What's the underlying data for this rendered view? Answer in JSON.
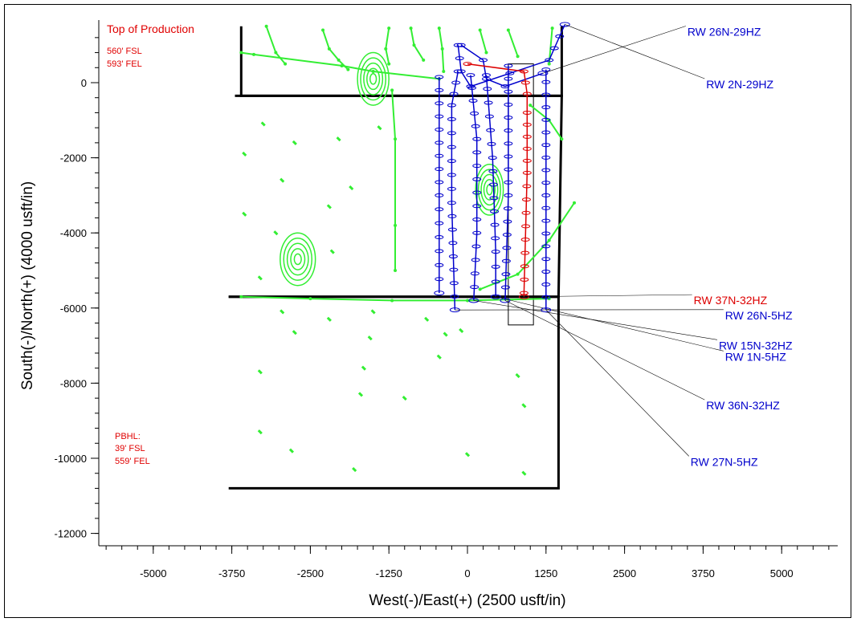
{
  "colors": {
    "frame": "#000000",
    "offset_wells": "#33ee33",
    "nearby_wells": "#0000cc",
    "subject_well": "#dd0000",
    "annotation": "#dd0000"
  },
  "chart_data": {
    "type": "scatter",
    "xlabel": "West(-)/East(+) (2500 usft/in)",
    "ylabel": "South(-)/North(+) (4000 usft/in)",
    "xlim": [
      -7800,
      7000
    ],
    "ylim": [
      -12000,
      1500
    ],
    "x_ticks": [
      "-5000",
      "-3750",
      "-2500",
      "-1250",
      "0",
      "1250",
      "2500",
      "3750",
      "5000"
    ],
    "y_ticks": [
      "0",
      "-2000",
      "-4000",
      "-6000",
      "-8000",
      "-10000",
      "-12000"
    ],
    "grid": false,
    "lease_outline": [
      {
        "name": "north-tract",
        "points": [
          [
            -3600,
            1500
          ],
          [
            -3600,
            -350
          ],
          [
            1500,
            -350
          ],
          [
            1500,
            1500
          ]
        ]
      },
      {
        "name": "middle-tract",
        "points": [
          [
            -3700,
            -350
          ],
          [
            1500,
            -350
          ],
          [
            1450,
            -5700
          ],
          [
            -3800,
            -5700
          ]
        ]
      },
      {
        "name": "south-tract",
        "points": [
          [
            -3800,
            -5700
          ],
          [
            1450,
            -5700
          ],
          [
            1450,
            -10800
          ],
          [
            -3800,
            -10800
          ]
        ]
      }
    ],
    "hardline_box": {
      "x": [
        650,
        1050
      ],
      "y": [
        500,
        -6450
      ]
    },
    "annotations": {
      "top_of_production": {
        "title": "Top of Production",
        "line1": "560' FSL",
        "line2": "593' FEL",
        "x": -5700,
        "y": 1050
      },
      "pbhl": {
        "title": "PBHL:",
        "line1": "39' FSL",
        "line2": "559' FEL",
        "x": -5700,
        "y": -9200
      }
    },
    "series": [
      {
        "name": "RW 26N-29HZ",
        "color": "#0000cc",
        "points": [
          [
            -100,
            1000
          ],
          [
            250,
            600
          ],
          [
            300,
            100
          ],
          [
            600,
            -100
          ],
          [
            1200,
            250
          ]
        ],
        "label_pos": [
          3500,
          1250
        ]
      },
      {
        "name": "RW 2N-29HZ",
        "color": "#0000cc",
        "points": [
          [
            -150,
            1000
          ],
          [
            -100,
            300
          ],
          [
            50,
            -100
          ],
          [
            1300,
            600
          ],
          [
            1550,
            1550
          ]
        ],
        "label_pos": [
          3800,
          -150
        ]
      },
      {
        "name": "RW 37N-32HZ",
        "color": "#dd0000",
        "points": [
          [
            0,
            500
          ],
          [
            900,
            300
          ],
          [
            950,
            -300
          ],
          [
            950,
            -800
          ],
          [
            950,
            -2400
          ],
          [
            900,
            -5600
          ],
          [
            900,
            -5700
          ]
        ],
        "label_pos": [
          3600,
          -5900
        ]
      },
      {
        "name": "RW 26N-5HZ",
        "color": "#0000cc",
        "points": [
          [
            -150,
            300
          ],
          [
            -250,
            -600
          ],
          [
            -250,
            -3200
          ],
          [
            -200,
            -6050
          ]
        ],
        "label_pos": [
          4100,
          -6300
        ]
      },
      {
        "name": "RW 15N-32HZ",
        "color": "#0000cc",
        "points": [
          [
            50,
            200
          ],
          [
            150,
            -1500
          ],
          [
            150,
            -4000
          ],
          [
            100,
            -5800
          ]
        ],
        "label_pos": [
          4000,
          -7100
        ]
      },
      {
        "name": "RW 1N-5HZ",
        "color": "#0000cc",
        "points": [
          [
            300,
            200
          ],
          [
            400,
            -2000
          ],
          [
            450,
            -4500
          ],
          [
            450,
            -5700
          ]
        ],
        "label_pos": [
          4100,
          -7400
        ]
      },
      {
        "name": "RW 36N-32HZ",
        "color": "#0000cc",
        "points": [
          [
            650,
            450
          ],
          [
            650,
            -3000
          ],
          [
            600,
            -5800
          ]
        ],
        "label_pos": [
          3800,
          -8700
        ]
      },
      {
        "name": "RW 27N-5HZ",
        "color": "#0000cc",
        "points": [
          [
            1250,
            350
          ],
          [
            1250,
            -3000
          ],
          [
            1250,
            -6050
          ]
        ],
        "label_pos": [
          3550,
          -10200
        ]
      },
      {
        "name": "",
        "color": "#0000cc",
        "points": [
          [
            -450,
            150
          ],
          [
            -450,
            -3000
          ],
          [
            -450,
            -5600
          ]
        ]
      }
    ],
    "offset_wells": [
      {
        "points": [
          [
            -3600,
            800
          ],
          [
            -3400,
            750
          ],
          [
            -2000,
            450
          ],
          [
            -1500,
            300
          ],
          [
            -450,
            100
          ]
        ]
      },
      {
        "points": [
          [
            -2300,
            1400
          ],
          [
            -2200,
            900
          ],
          [
            -2050,
            600
          ],
          [
            -1900,
            350
          ]
        ]
      },
      {
        "points": [
          [
            -1250,
            1450
          ],
          [
            -1300,
            900
          ],
          [
            -1250,
            500
          ]
        ]
      },
      {
        "points": [
          [
            -900,
            1450
          ],
          [
            -850,
            1000
          ],
          [
            -700,
            600
          ]
        ]
      },
      {
        "points": [
          [
            -450,
            1450
          ],
          [
            -400,
            900
          ],
          [
            -380,
            300
          ]
        ]
      },
      {
        "points": [
          [
            -3200,
            1500
          ],
          [
            -3050,
            800
          ],
          [
            -2900,
            500
          ]
        ]
      },
      {
        "points": [
          [
            -1200,
            -200
          ],
          [
            -1150,
            -1500
          ],
          [
            -1150,
            -3800
          ],
          [
            -1150,
            -5000
          ]
        ]
      },
      {
        "points": [
          [
            -3600,
            -5700
          ],
          [
            -2500,
            -5750
          ],
          [
            -1200,
            -5800
          ],
          [
            0,
            -5800
          ],
          [
            1300,
            -5750
          ]
        ]
      },
      {
        "points": [
          [
            1000,
            -600
          ],
          [
            1300,
            -1000
          ],
          [
            1500,
            -1500
          ]
        ]
      },
      {
        "points": [
          [
            200,
            -5500
          ],
          [
            800,
            -5100
          ],
          [
            1300,
            -4200
          ],
          [
            1700,
            -3200
          ]
        ]
      },
      {
        "points": [
          [
            200,
            1400
          ],
          [
            300,
            800
          ]
        ]
      },
      {
        "points": [
          [
            650,
            1400
          ],
          [
            800,
            700
          ]
        ]
      },
      {
        "points": [
          [
            1350,
            1450
          ],
          [
            1300,
            500
          ]
        ]
      }
    ],
    "target_ellipses": [
      {
        "x": -1500,
        "y": 100,
        "rx": 250,
        "ry": 280
      },
      {
        "x": 350,
        "y": -2850,
        "rx": 220,
        "ry": 270
      },
      {
        "x": -2700,
        "y": -4700,
        "rx": 280,
        "ry": 280
      }
    ],
    "scatter_marks": [
      [
        -3250,
        -1100
      ],
      [
        -2750,
        -1600
      ],
      [
        -2050,
        -1500
      ],
      [
        -1400,
        -1200
      ],
      [
        -3550,
        -1900
      ],
      [
        -2950,
        -2600
      ],
      [
        -2200,
        -3300
      ],
      [
        -1850,
        -2800
      ],
      [
        -3550,
        -3500
      ],
      [
        -3050,
        -4000
      ],
      [
        -2150,
        -4500
      ],
      [
        -3300,
        -5200
      ],
      [
        -2950,
        -6100
      ],
      [
        -2200,
        -6300
      ],
      [
        -1500,
        -6100
      ],
      [
        -650,
        -6300
      ],
      [
        -2750,
        -6650
      ],
      [
        -1550,
        -6800
      ],
      [
        -350,
        -6700
      ],
      [
        -100,
        -6600
      ],
      [
        -3300,
        -7700
      ],
      [
        -1650,
        -7600
      ],
      [
        -450,
        -7300
      ],
      [
        800,
        -7800
      ],
      [
        -3300,
        -9300
      ],
      [
        -1700,
        -8300
      ],
      [
        -1000,
        -8400
      ],
      [
        900,
        -8600
      ],
      [
        -2800,
        -9800
      ],
      [
        -1800,
        -10300
      ],
      [
        0,
        -9900
      ],
      [
        900,
        -10400
      ]
    ]
  }
}
